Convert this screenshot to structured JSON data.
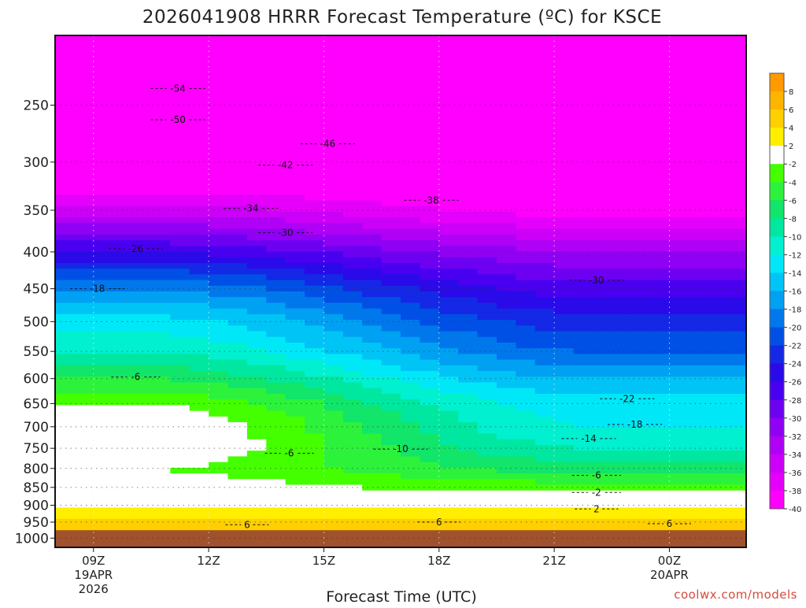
{
  "chart_data": {
    "type": "heatmap",
    "title": "2026041908 HRRR Forecast Temperature (ºC) for KSCE",
    "xlabel": "Forecast Time (UTC)",
    "ylabel": "",
    "x_ticks": [
      {
        "label": "09Z",
        "sub": [
          "19APR",
          "2026"
        ],
        "hour": 1
      },
      {
        "label": "12Z",
        "sub": [],
        "hour": 4
      },
      {
        "label": "15Z",
        "sub": [],
        "hour": 7
      },
      {
        "label": "18Z",
        "sub": [],
        "hour": 10
      },
      {
        "label": "21Z",
        "sub": [],
        "hour": 13
      },
      {
        "label": "00Z",
        "sub": [
          "20APR"
        ],
        "hour": 16
      }
    ],
    "x_range_hours": [
      0,
      18
    ],
    "y_ticks": [
      250,
      300,
      350,
      400,
      450,
      500,
      550,
      600,
      650,
      700,
      750,
      800,
      850,
      900,
      950,
      1000
    ],
    "y_range_hPa": [
      200,
      1030
    ],
    "y_scale": "log-pressure (inverted)",
    "grid": "dotted",
    "credit": "coolwx.com/models",
    "colorbar": {
      "labels": [
        "8",
        "6",
        "4",
        "2",
        "-2",
        "-4",
        "-6",
        "-8",
        "-10",
        "-12",
        "-14",
        "-16",
        "-18",
        "-20",
        "-22",
        "-24",
        "-26",
        "-28",
        "-30",
        "-32",
        "-34",
        "-36",
        "-38",
        "-40"
      ],
      "colors": [
        "#ff9a00",
        "#ffb400",
        "#ffcf00",
        "#ffee00",
        "#ffffff",
        "#44ff00",
        "#2df23c",
        "#11e56a",
        "#00e7a0",
        "#00f0d0",
        "#00e8f8",
        "#00c4f6",
        "#00a0f2",
        "#0078ec",
        "#0050e6",
        "#1428e6",
        "#2a0ae8",
        "#4a00f0",
        "#6e00f2",
        "#9000f4",
        "#b000f6",
        "#cc00f8",
        "#e400fa",
        "#ff00ff"
      ]
    },
    "contour_labels": [
      {
        "text": "-54",
        "hour": 3.2,
        "p": 237
      },
      {
        "text": "-50",
        "hour": 3.2,
        "p": 262
      },
      {
        "text": "-46",
        "hour": 7.1,
        "p": 283
      },
      {
        "text": "-42",
        "hour": 6.0,
        "p": 303
      },
      {
        "text": "-38",
        "hour": 9.8,
        "p": 339
      },
      {
        "text": "-34",
        "hour": 5.1,
        "p": 348
      },
      {
        "text": "-30",
        "hour": 6.0,
        "p": 376
      },
      {
        "text": "-26",
        "hour": 2.1,
        "p": 396
      },
      {
        "text": "-30",
        "hour": 14.1,
        "p": 438
      },
      {
        "text": "-18",
        "hour": 1.1,
        "p": 450
      },
      {
        "text": "-6",
        "hour": 2.1,
        "p": 597
      },
      {
        "text": "-22",
        "hour": 14.9,
        "p": 640
      },
      {
        "text": "-18",
        "hour": 15.1,
        "p": 695
      },
      {
        "text": "-14",
        "hour": 13.9,
        "p": 727
      },
      {
        "text": "-10",
        "hour": 9.0,
        "p": 752
      },
      {
        "text": "-6",
        "hour": 6.1,
        "p": 762
      },
      {
        "text": "-6",
        "hour": 14.1,
        "p": 818
      },
      {
        "text": "-2",
        "hour": 14.1,
        "p": 864
      },
      {
        "text": "2",
        "hour": 14.1,
        "p": 911
      },
      {
        "text": "6",
        "hour": 5.0,
        "p": 958
      },
      {
        "text": "6",
        "hour": 10.0,
        "p": 950
      },
      {
        "text": "6",
        "hour": 16.0,
        "p": 955
      }
    ]
  }
}
